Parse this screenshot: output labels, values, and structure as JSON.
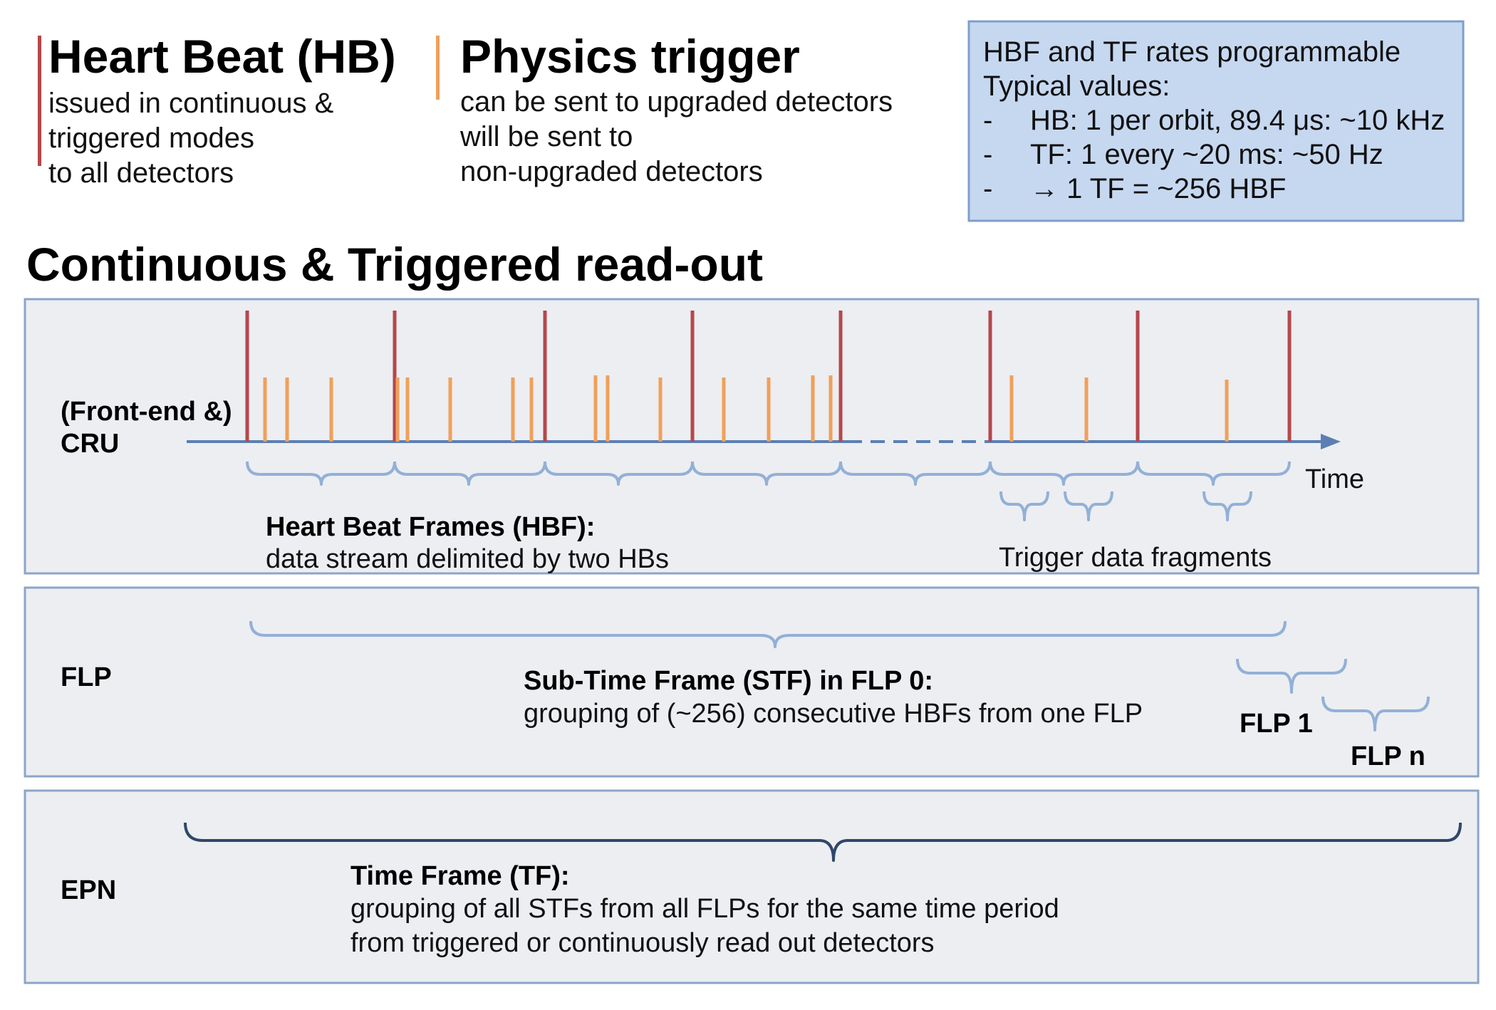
{
  "legend": {
    "hb": {
      "title": "Heart Beat (HB)",
      "lines": [
        "issued in continuous &",
        "triggered modes",
        "to all detectors"
      ],
      "color": "#b5474b"
    },
    "physics": {
      "title": "Physics trigger",
      "lines": [
        "can be sent to upgraded detectors",
        "will be sent to",
        "non-upgraded detectors"
      ],
      "color": "#f0a05a"
    }
  },
  "info_box": {
    "lines": [
      "HBF and TF rates programmable",
      "Typical values:"
    ],
    "bullets": [
      {
        "dash": "-",
        "text": "HB: 1 per orbit, 89.4 μs: ~10 kHz"
      },
      {
        "dash": "-",
        "text": "TF: 1 every ~20 ms: ~50 Hz"
      },
      {
        "dash": "-",
        "text": "→ 1 TF = ~256 HBF"
      }
    ],
    "fill": "#c6d8f0",
    "border": "#7f9fcd"
  },
  "heading": "Continuous & Triggered read-out",
  "panel_cru": {
    "label_lines": [
      "(Front-end &)",
      "CRU"
    ],
    "time_label": "Time",
    "hbf_title": "Heart Beat Frames (HBF):",
    "hbf_desc": "data stream delimited by two HBs",
    "trigger_fragments": "Trigger data fragments"
  },
  "panel_flp": {
    "label": "FLP",
    "stf_title": "Sub-Time Frame (STF) in FLP 0:",
    "stf_desc": "grouping of (~256) consecutive HBFs from one FLP",
    "flp1": "FLP 1",
    "flpn": "FLP n"
  },
  "panel_epn": {
    "label": "EPN",
    "tf_title": "Time Frame (TF):",
    "tf_desc_lines": [
      "grouping of all STFs from all FLPs for the same time period",
      "from triggered or continuously read out detectors"
    ]
  },
  "colors": {
    "panel_fill": "#eceef2",
    "panel_border": "#8ca5c8",
    "axis": "#5b7fb2",
    "brace": "#93b0d6",
    "brace_dark": "#2f4769"
  }
}
